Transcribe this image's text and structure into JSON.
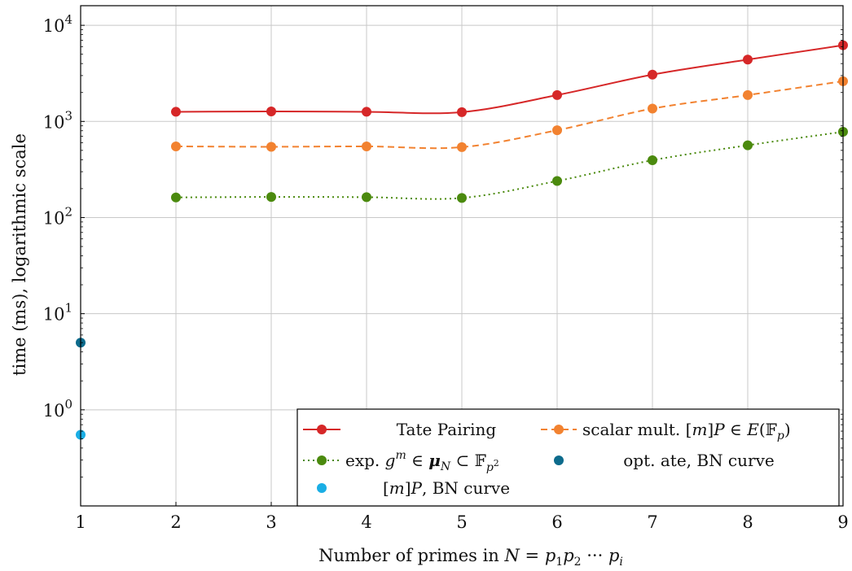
{
  "chart_data": {
    "type": "line",
    "xlabel": "Number of primes in N = p₁p₂ ··· pᵢ",
    "ylabel": "time (ms), logarithmic scale",
    "xlim": [
      1,
      9
    ],
    "ylim": [
      0.1,
      16000
    ],
    "yscale": "log",
    "grid": true,
    "legend_position": "bottom-right",
    "x_ticks": [
      "1",
      "2",
      "3",
      "4",
      "5",
      "6",
      "7",
      "8",
      "9"
    ],
    "y_ticks": [
      {
        "value": 1,
        "base": "10",
        "exp": "0"
      },
      {
        "value": 10,
        "base": "10",
        "exp": "1"
      },
      {
        "value": 100,
        "base": "10",
        "exp": "2"
      },
      {
        "value": 1000,
        "base": "10",
        "exp": "3"
      },
      {
        "value": 10000,
        "base": "10",
        "exp": "4"
      }
    ],
    "series": [
      {
        "name": "Tate Pairing",
        "color": "#d62728",
        "line": "solid",
        "x": [
          2,
          3,
          4,
          5,
          6,
          7,
          8,
          9
        ],
        "y": [
          1260,
          1270,
          1260,
          1250,
          1880,
          3070,
          4400,
          6200
        ]
      },
      {
        "name": "scalar mult. [m]P ∈ E(𝔽ₚ)",
        "color": "#f28230",
        "line": "dashed",
        "x": [
          2,
          3,
          4,
          5,
          6,
          7,
          8,
          9
        ],
        "y": [
          550,
          545,
          550,
          540,
          810,
          1360,
          1880,
          2620
        ]
      },
      {
        "name": "exp. gᵐ ∈ μₙ ⊂ 𝔽ₚ²",
        "color": "#4b8a0e",
        "line": "dotted",
        "x": [
          2,
          3,
          4,
          5,
          6,
          7,
          8,
          9
        ],
        "y": [
          162,
          164,
          163,
          160,
          240,
          395,
          565,
          780
        ]
      },
      {
        "name": "opt. ate, BN curve",
        "color": "#0d6b8c",
        "line": "none",
        "x": [
          1
        ],
        "y": [
          5
        ]
      },
      {
        "name": "[m]P, BN curve",
        "color": "#1aaee5",
        "line": "none",
        "x": [
          1
        ],
        "y": [
          0.55
        ]
      }
    ]
  }
}
